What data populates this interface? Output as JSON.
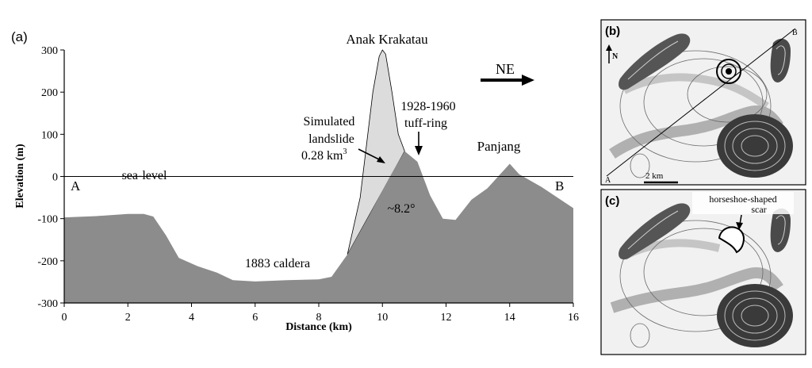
{
  "panel_a": {
    "label": "(a)",
    "chart_data": {
      "type": "area",
      "xlabel": "Distance (km)",
      "ylabel": "Elevation (m)",
      "xlim": [
        0,
        16
      ],
      "ylim": [
        -300,
        300
      ],
      "xticks": [
        0,
        2,
        4,
        6,
        8,
        10,
        12,
        14,
        16
      ],
      "yticks": [
        -300,
        -200,
        -100,
        0,
        100,
        200,
        300
      ],
      "grid": false,
      "series": [
        {
          "fill": "#8c8c8c",
          "x": [
            0,
            1,
            2,
            2.5,
            2.8,
            3.2,
            3.6,
            4.2,
            4.8,
            5.3,
            6,
            7,
            8,
            8.4,
            8.9,
            9.6,
            10.2,
            10.7,
            11.1,
            11.5,
            11.9,
            12.3,
            12.8,
            13.3,
            13.7,
            14.0,
            14.3,
            15.0,
            16
          ],
          "y": [
            -97,
            -94,
            -89,
            -89,
            -95,
            -140,
            -193,
            -213,
            -228,
            -246,
            -249,
            -246,
            -244,
            -238,
            -185,
            -90,
            -5,
            60,
            35,
            -45,
            -100,
            -103,
            -55,
            -28,
            5,
            30,
            5,
            -25,
            -75
          ]
        },
        {
          "fill": "#dcdcdc",
          "x": [
            8.9,
            9.3,
            9.7,
            9.9,
            10.0,
            10.1,
            10.3,
            10.5,
            10.7
          ],
          "y": [
            -185,
            -50,
            200,
            285,
            300,
            290,
            200,
            100,
            60
          ]
        }
      ],
      "annotations": {
        "peak": "Anak Krakatau",
        "landslide_1": "Simulated",
        "landslide_2": "landslide",
        "landslide_3": "0.28 km",
        "landslide_sup": "3",
        "tuffring_1": "1928-1960",
        "tuffring_2": "tuff-ring",
        "direction": "NE",
        "panjang": "Panjang",
        "sea_level": "sea-level",
        "point_a": "A",
        "point_b": "B",
        "caldera": "1883 caldera",
        "angle": "~8.2°"
      }
    }
  },
  "panel_b": {
    "label": "(b)",
    "north": "N",
    "scale": "2 km",
    "point_a": "A",
    "point_b": "B"
  },
  "panel_c": {
    "label": "(c)",
    "annotation_1": "horseshoe-shaped",
    "annotation_2": "scar"
  }
}
